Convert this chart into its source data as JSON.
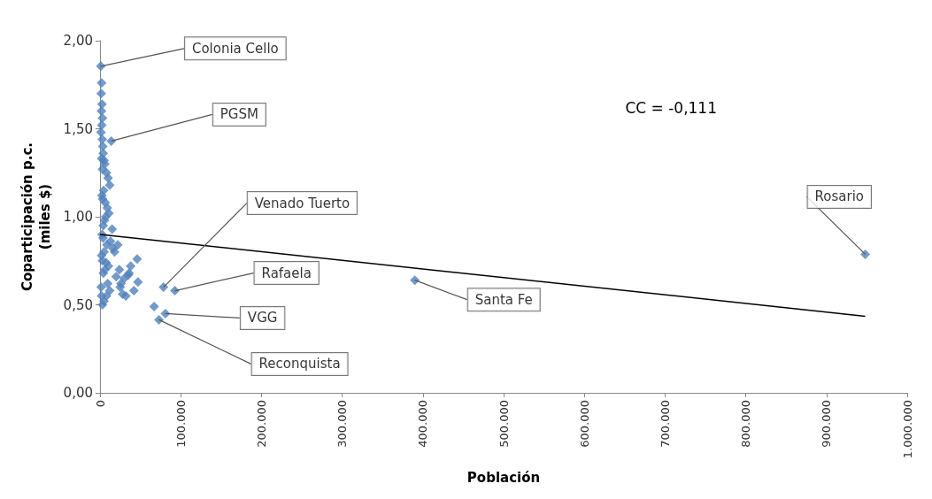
{
  "chart_data": {
    "type": "scatter",
    "xlabel": "Población",
    "ylabel": "Coparticipación p.c.\n(miles $)",
    "xlim": [
      0,
      1000000
    ],
    "ylim": [
      0,
      2
    ],
    "xticks": [
      {
        "value": 0,
        "label": "0"
      },
      {
        "value": 100000,
        "label": "100.000"
      },
      {
        "value": 200000,
        "label": "200.000"
      },
      {
        "value": 300000,
        "label": "300.000"
      },
      {
        "value": 400000,
        "label": "400.000"
      },
      {
        "value": 500000,
        "label": "500.000"
      },
      {
        "value": 600000,
        "label": "600.000"
      },
      {
        "value": 700000,
        "label": "700.000"
      },
      {
        "value": 800000,
        "label": "800.000"
      },
      {
        "value": 900000,
        "label": "900.000"
      },
      {
        "value": 1000000,
        "label": "1.000.000"
      }
    ],
    "yticks": [
      {
        "value": 0,
        "label": "0,00"
      },
      {
        "value": 0.5,
        "label": "0,50"
      },
      {
        "value": 1,
        "label": "1,00"
      },
      {
        "value": 1.5,
        "label": "1,50"
      },
      {
        "value": 2,
        "label": "2,00"
      }
    ],
    "marker": "diamond",
    "series": [
      {
        "color": "#4f81bd",
        "x": [
          1000,
          2000,
          1500,
          2500,
          1800,
          3000,
          2200,
          1200,
          2800,
          14000,
          3500,
          4000,
          2000,
          5000,
          6000,
          3000,
          8000,
          10000,
          12000,
          4500,
          2500,
          3200,
          6500,
          9000,
          11000,
          7000,
          5500,
          15000,
          4000,
          2600,
          3800,
          13000,
          8500,
          16000,
          5000,
          2000,
          3000,
          7500,
          10500,
          18000,
          6000,
          4200,
          20000,
          22000,
          9500,
          25000,
          12000,
          28000,
          30000,
          35000,
          38000,
          42000,
          46000,
          47000,
          36000,
          26000,
          32000,
          24000,
          8000,
          5000,
          3000,
          2000,
          1500,
          67000,
          73000,
          78700,
          81000,
          92700,
          390000,
          948000
        ],
        "values": [
          1.855,
          1.76,
          1.7,
          1.64,
          1.6,
          1.56,
          1.52,
          1.48,
          1.44,
          1.43,
          1.4,
          1.36,
          1.33,
          1.32,
          1.3,
          1.27,
          1.25,
          1.22,
          1.18,
          1.15,
          1.12,
          1.1,
          1.08,
          1.05,
          1.02,
          1.0,
          0.98,
          0.93,
          0.95,
          0.9,
          0.88,
          0.86,
          0.84,
          0.82,
          0.8,
          0.78,
          0.75,
          0.74,
          0.72,
          0.8,
          0.7,
          0.68,
          0.66,
          0.84,
          0.62,
          0.6,
          0.58,
          0.56,
          0.65,
          0.67,
          0.72,
          0.58,
          0.76,
          0.63,
          0.68,
          0.62,
          0.55,
          0.7,
          0.55,
          0.52,
          0.5,
          0.55,
          0.6,
          0.49,
          0.415,
          0.6,
          0.45,
          0.58,
          0.64,
          0.787
        ]
      },
      {
        "type": "line",
        "color": "#000000",
        "marker": "none",
        "x": [
          0,
          948000
        ],
        "values": [
          0.9,
          0.435
        ]
      }
    ],
    "annotations": [
      {
        "text": "Colonia Cello",
        "x": 1000,
        "y": 1.855
      },
      {
        "text": "PGSM",
        "x": 14000,
        "y": 1.43
      },
      {
        "text": "Venado Tuerto",
        "x": 78700,
        "y": 0.6
      },
      {
        "text": "Rafaela",
        "x": 92700,
        "y": 0.58
      },
      {
        "text": "VGG",
        "x": 81000,
        "y": 0.45
      },
      {
        "text": "Reconquista",
        "x": 73000,
        "y": 0.415
      },
      {
        "text": "Santa Fe",
        "x": 390000,
        "y": 0.64
      },
      {
        "text": "Rosario",
        "x": 948000,
        "y": 0.787
      },
      "CC = -0,111"
    ]
  }
}
